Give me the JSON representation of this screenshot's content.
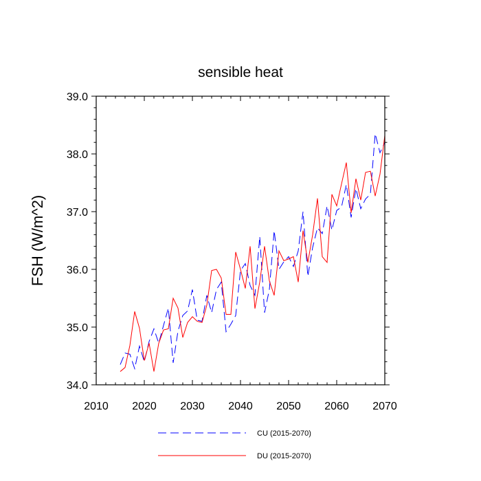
{
  "chart_data": {
    "type": "line",
    "title": "sensible heat",
    "xlabel": "",
    "ylabel": "FSH  (W/m^2)",
    "xlim": [
      2010,
      2070
    ],
    "ylim": [
      34.0,
      39.0
    ],
    "xticks": [
      "2010",
      "2020",
      "2030",
      "2040",
      "2050",
      "2060",
      "2070"
    ],
    "yticks": [
      "34.0",
      "35.0",
      "36.0",
      "37.0",
      "38.0",
      "39.0"
    ],
    "grid": false,
    "legend_position": "bottom-center",
    "x": [
      2015,
      2016,
      2017,
      2018,
      2019,
      2020,
      2021,
      2022,
      2023,
      2024,
      2025,
      2026,
      2027,
      2028,
      2029,
      2030,
      2031,
      2032,
      2033,
      2034,
      2035,
      2036,
      2037,
      2038,
      2039,
      2040,
      2041,
      2042,
      2043,
      2044,
      2045,
      2046,
      2047,
      2048,
      2049,
      2050,
      2051,
      2052,
      2053,
      2054,
      2055,
      2056,
      2057,
      2058,
      2059,
      2060,
      2061,
      2062,
      2063,
      2064,
      2065,
      2066,
      2067,
      2068,
      2069,
      2070
    ],
    "series": [
      {
        "name": "CU (2015-2070)",
        "color": "#0000ff",
        "dash": "dashed",
        "values": [
          34.35,
          34.55,
          34.53,
          34.28,
          34.67,
          34.4,
          34.75,
          34.97,
          34.72,
          35.03,
          35.33,
          34.38,
          34.93,
          35.2,
          35.28,
          35.65,
          35.12,
          35.1,
          35.55,
          35.25,
          35.65,
          35.78,
          34.92,
          35.05,
          35.2,
          35.98,
          36.1,
          35.72,
          35.55,
          36.57,
          35.25,
          35.65,
          36.67,
          36.0,
          36.13,
          36.22,
          36.05,
          36.32,
          37.0,
          35.88,
          36.38,
          36.72,
          36.62,
          37.1,
          36.68,
          37.02,
          37.08,
          37.47,
          36.9,
          37.4,
          37.05,
          37.22,
          37.3,
          38.35,
          38.02,
          38.2
        ]
      },
      {
        "name": "DU (2015-2070)",
        "color": "#ff0000",
        "dash": "solid",
        "values": [
          34.23,
          34.3,
          34.68,
          35.27,
          34.98,
          34.42,
          34.72,
          34.23,
          34.72,
          34.95,
          34.97,
          35.5,
          35.33,
          34.82,
          35.08,
          35.18,
          35.1,
          35.08,
          35.38,
          35.98,
          36.0,
          35.85,
          35.22,
          35.22,
          36.3,
          36.0,
          35.67,
          36.4,
          35.32,
          35.78,
          36.4,
          35.8,
          35.55,
          36.32,
          36.15,
          36.18,
          36.22,
          35.78,
          36.67,
          36.12,
          36.6,
          37.23,
          36.22,
          36.12,
          37.3,
          37.1,
          37.48,
          37.85,
          36.98,
          37.57,
          37.2,
          37.68,
          37.7,
          37.27,
          37.65,
          38.32
        ]
      }
    ]
  }
}
